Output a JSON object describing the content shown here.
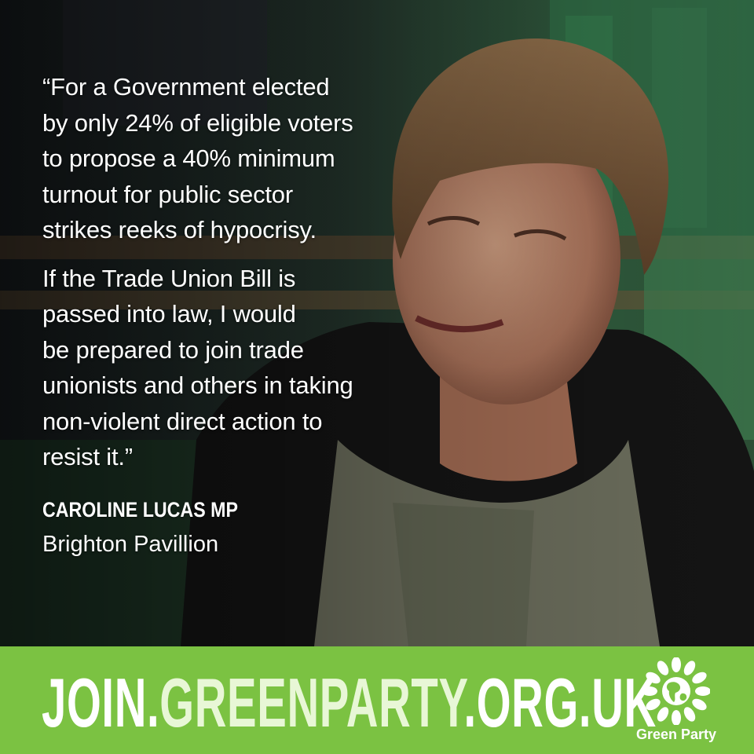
{
  "quote": {
    "paragraph_1": "“For a Government elected\nby only 24% of eligible voters\nto propose a 40% minimum\nturnout for public sector\nstrikes reeks of hypocrisy.",
    "paragraph_2": "If the Trade Union Bill is\npassed into law, I would\nbe prepared to join trade\nunionists and others in taking\nnon-violent direct action to\nresist it.”"
  },
  "speaker": {
    "name": "CAROLINE LUCAS MP",
    "constituency": "Brighton Pavillion"
  },
  "footer": {
    "link_part_1": "JOIN.",
    "link_part_2": "GREENPARTY",
    "link_part_3": ".ORG.UK",
    "logo_label": "Green Party"
  },
  "colors": {
    "footer_bar": "#7bc242",
    "link_white": "#ffffff",
    "link_light_green": "#e8f7d6"
  },
  "icons": {
    "photo": "photo-of-speaker",
    "logo": "green-party-sunflower-globe-icon"
  }
}
